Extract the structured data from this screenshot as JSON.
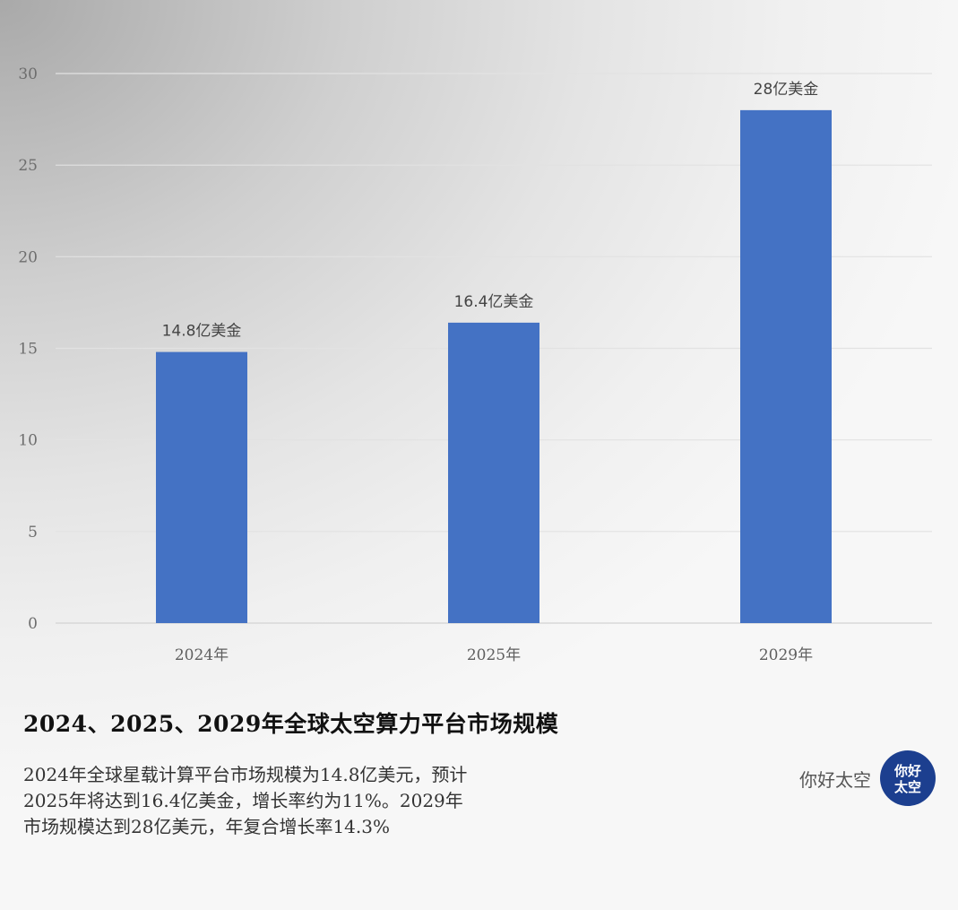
{
  "chart_data": {
    "type": "bar",
    "categories": [
      "2024年",
      "2025年",
      "2029年"
    ],
    "values": [
      14.8,
      16.4,
      28
    ],
    "data_labels": [
      "14.8亿美金",
      "16.4亿美金",
      "28亿美金"
    ],
    "ylim": [
      0,
      30
    ],
    "yticks": [
      0,
      5,
      10,
      15,
      20,
      25,
      30
    ],
    "grid": true,
    "bar_color": "#4472c4"
  },
  "headline": "2024、2025、2029年全球太空算力平台市场规模",
  "description": "2024年全球星载计算平台市场规模为14.8亿美元，预计2025年将达到16.4亿美金，增长率约为11%。2029年市场规模达到28亿美元，年复合增长率14.3%",
  "brand": {
    "name": "你好太空",
    "logo_icon": "hello-space-logo-icon",
    "logo_color": "#1c3f8f"
  }
}
